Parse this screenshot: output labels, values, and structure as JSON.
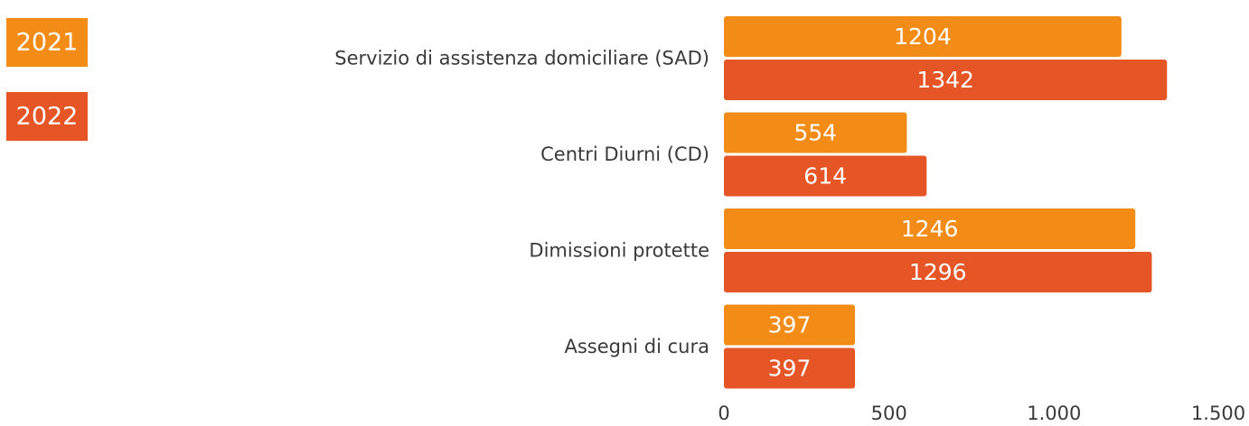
{
  "chart_data": {
    "type": "bar",
    "orientation": "horizontal",
    "categories": [
      "Servizio di assistenza domiciliare (SAD)",
      "Centri Diurni (CD)",
      "Dimissioni protette",
      "Assegni di cura"
    ],
    "series": [
      {
        "name": "2021",
        "color": "#f28c16",
        "values": [
          1204,
          554,
          1246,
          397
        ]
      },
      {
        "name": "2022",
        "color": "#e55525",
        "values": [
          1342,
          614,
          1296,
          397
        ]
      }
    ],
    "xlim": [
      0,
      1500
    ],
    "xticks": [
      0,
      500,
      {
        "value": 1000,
        "label": "1.000"
      },
      {
        "value": 1500,
        "label": "1.500"
      }
    ],
    "legend": "top-left"
  }
}
